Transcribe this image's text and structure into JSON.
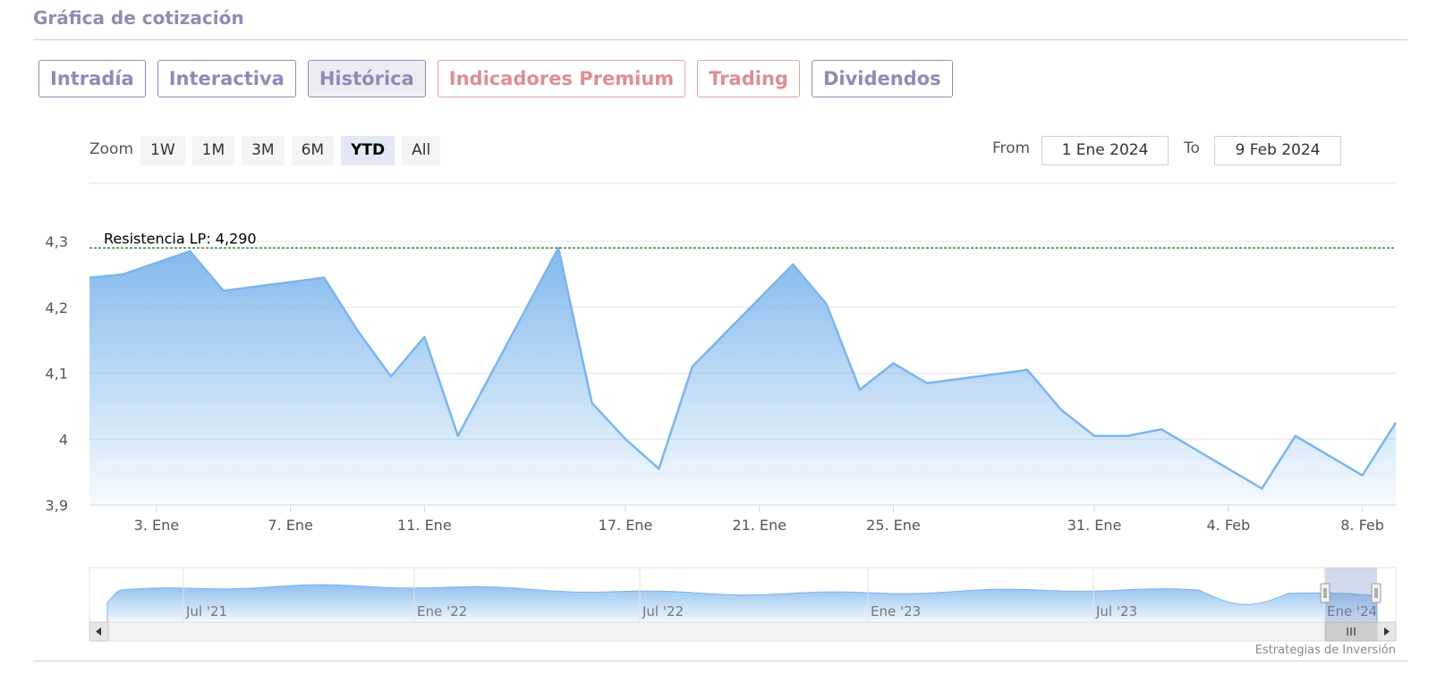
{
  "page": {
    "title": "Gráfica de cotización",
    "tabs": [
      {
        "label": "Intradía",
        "active": false,
        "premium": false
      },
      {
        "label": "Interactiva",
        "active": false,
        "premium": false
      },
      {
        "label": "Histórica",
        "active": true,
        "premium": false
      },
      {
        "label": "Indicadores Premium",
        "active": false,
        "premium": true
      },
      {
        "label": "Trading",
        "active": false,
        "premium": true
      },
      {
        "label": "Dividendos",
        "active": false,
        "premium": false
      }
    ],
    "zoom": {
      "label": "Zoom",
      "buttons": [
        {
          "label": "1W",
          "active": false
        },
        {
          "label": "1M",
          "active": false
        },
        {
          "label": "3M",
          "active": false
        },
        {
          "label": "6M",
          "active": false
        },
        {
          "label": "YTD",
          "active": true
        },
        {
          "label": "All",
          "active": false
        }
      ]
    },
    "range": {
      "from_label": "From",
      "from_value": "1 Ene 2024",
      "to_label": "To",
      "to_value": "9 Feb 2024"
    },
    "credit": "Estrategias de Inversión"
  },
  "colors": {
    "line": "#7cb5ec",
    "fill_top": "#7cb5ec",
    "resistance": "#1e6b1e",
    "title": "#8f8cb4",
    "tab_border": "#8e8db0",
    "premium": "#e08e8e"
  },
  "chart_data": {
    "type": "area",
    "ylim": [
      3.9,
      4.3
    ],
    "yticks": [
      {
        "value": 3.9,
        "label": "3,9"
      },
      {
        "value": 4.0,
        "label": "4"
      },
      {
        "value": 4.1,
        "label": "4,1"
      },
      {
        "value": 4.2,
        "label": "4,2"
      },
      {
        "value": 4.3,
        "label": "4,3"
      }
    ],
    "xlim": [
      "2024-01-01",
      "2024-02-09"
    ],
    "xticks": [
      {
        "date": "2024-01-03",
        "label": "3. Ene"
      },
      {
        "date": "2024-01-07",
        "label": "7. Ene"
      },
      {
        "date": "2024-01-11",
        "label": "11. Ene"
      },
      {
        "date": "2024-01-17",
        "label": "17. Ene"
      },
      {
        "date": "2024-01-21",
        "label": "21. Ene"
      },
      {
        "date": "2024-01-25",
        "label": "25. Ene"
      },
      {
        "date": "2024-01-31",
        "label": "31. Ene"
      },
      {
        "date": "2024-02-04",
        "label": "4. Feb"
      },
      {
        "date": "2024-02-08",
        "label": "8. Feb"
      }
    ],
    "series": [
      {
        "points": [
          [
            "2024-01-01",
            4.245
          ],
          [
            "2024-01-02",
            4.25
          ],
          [
            "2024-01-04",
            4.285
          ],
          [
            "2024-01-05",
            4.225
          ],
          [
            "2024-01-08",
            4.245
          ],
          [
            "2024-01-09",
            4.165
          ],
          [
            "2024-01-10",
            4.095
          ],
          [
            "2024-01-11",
            4.155
          ],
          [
            "2024-01-12",
            4.005
          ],
          [
            "2024-01-15",
            4.29
          ],
          [
            "2024-01-16",
            4.055
          ],
          [
            "2024-01-17",
            4.0
          ],
          [
            "2024-01-18",
            3.955
          ],
          [
            "2024-01-19",
            4.11
          ],
          [
            "2024-01-22",
            4.265
          ],
          [
            "2024-01-23",
            4.205
          ],
          [
            "2024-01-24",
            4.075
          ],
          [
            "2024-01-25",
            4.115
          ],
          [
            "2024-01-26",
            4.085
          ],
          [
            "2024-01-29",
            4.105
          ],
          [
            "2024-01-30",
            4.045
          ],
          [
            "2024-01-31",
            4.005
          ],
          [
            "2024-02-01",
            4.005
          ],
          [
            "2024-02-02",
            4.015
          ],
          [
            "2024-02-05",
            3.925
          ],
          [
            "2024-02-06",
            4.005
          ],
          [
            "2024-02-07",
            3.975
          ],
          [
            "2024-02-08",
            3.945
          ],
          [
            "2024-02-09",
            4.025
          ]
        ]
      }
    ],
    "annotations": [
      {
        "type": "horizontal-line",
        "value": 4.29,
        "label": "Resistencia LP: 4,290",
        "style": "dashed"
      }
    ],
    "navigator": {
      "labels": [
        "Jul '21",
        "Ene '22",
        "Jul '22",
        "Ene '23",
        "Jul '23",
        "Ene '24"
      ]
    },
    "grid": true,
    "legend": "none"
  }
}
